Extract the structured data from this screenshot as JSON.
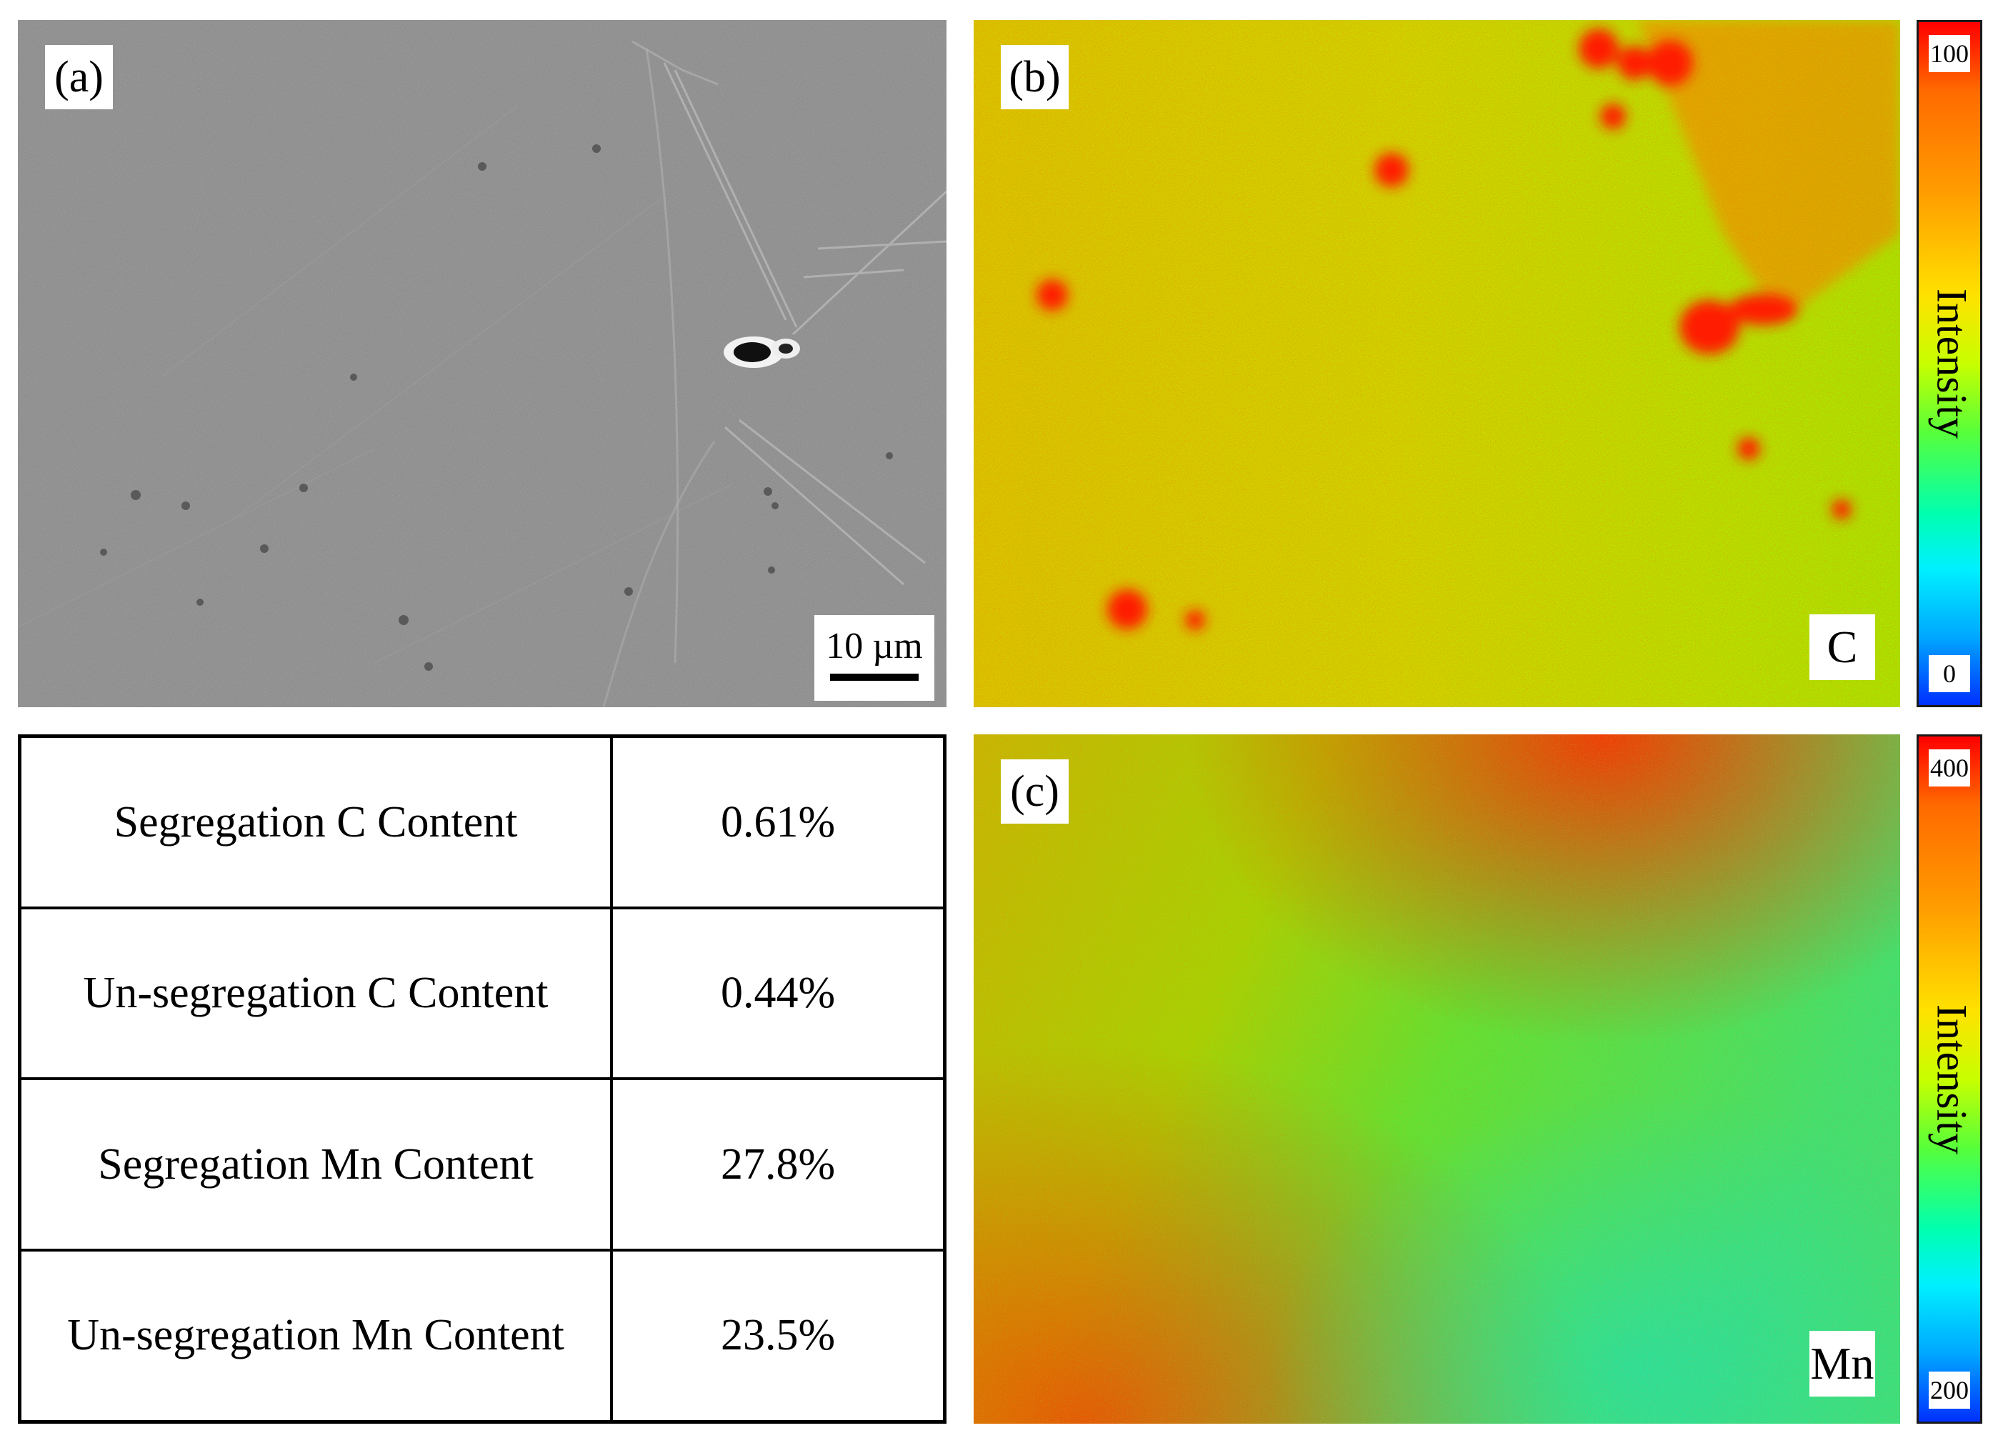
{
  "panels": {
    "a": {
      "label": "(a)",
      "scalebar": "10 µm"
    },
    "b": {
      "label": "(b)",
      "element": "C",
      "colorbar": {
        "title": "Intensity",
        "max": "100",
        "min": "0"
      }
    },
    "c": {
      "label": "(c)",
      "element": "Mn",
      "colorbar": {
        "title": "Intensity",
        "max": "400",
        "min": "200"
      }
    }
  },
  "table": {
    "rows": [
      {
        "label": "Segregation C Content",
        "value": "0.61%"
      },
      {
        "label": "Un-segregation C Content",
        "value": "0.44%"
      },
      {
        "label": "Segregation Mn Content",
        "value": "27.8%"
      },
      {
        "label": "Un-segregation Mn Content",
        "value": "23.5%"
      }
    ]
  },
  "colors": {
    "high": "#ff0000",
    "mid": "#c8ff00",
    "low": "#0030ff",
    "sem_gray": "#8b8b8b"
  }
}
